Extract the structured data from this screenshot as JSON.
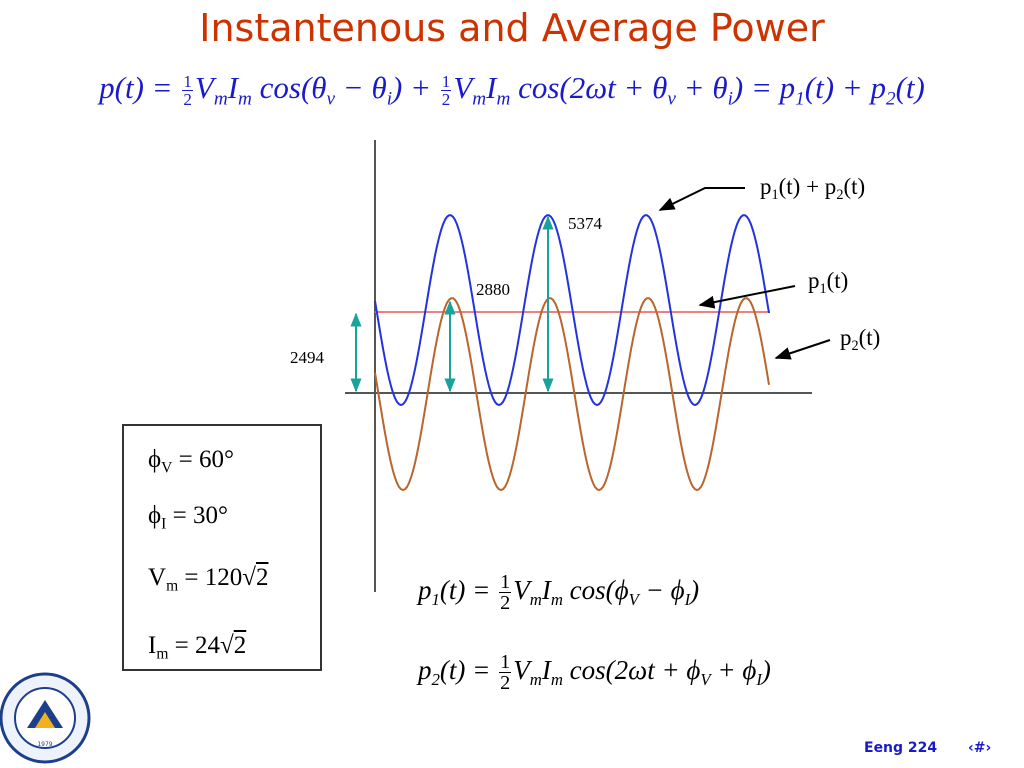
{
  "title": "Instantenous and Average Power",
  "equation": [
    "p(t) = ",
    "1",
    "2",
    "V",
    "m",
    "I",
    "m",
    " cos(θ",
    "v",
    " − θ",
    "i",
    ") + ",
    "1",
    "2",
    "V",
    "m",
    "I",
    "m",
    " cos(2ωt + θ",
    "v",
    " + θ",
    "i",
    ") = p",
    "1",
    "(t) + p",
    "2",
    "(t)"
  ],
  "figure": {
    "labels": {
      "total": [
        "p",
        "1",
        "(t) + p",
        "2",
        "(t)"
      ],
      "p1": [
        "p",
        "1",
        "(t)"
      ],
      "p2": [
        "p",
        "2",
        "(t)"
      ]
    },
    "annotations": {
      "peak": "5374",
      "p2_peak": "2880",
      "average": "2494"
    }
  },
  "parameters": [
    [
      "ϕ",
      "V",
      " = 60°"
    ],
    [
      "ϕ",
      "I",
      " = 30°"
    ],
    [
      "V",
      "m",
      " = 120√",
      "2"
    ],
    [
      "I",
      "m",
      " =  24√",
      "2"
    ]
  ],
  "formulas": [
    [
      "p",
      "1",
      "(t) = ",
      "1",
      "2",
      "V",
      "m",
      "I",
      "m",
      " cos(ϕ",
      "V",
      " − ϕ",
      "I",
      ")"
    ],
    [
      "p",
      "2",
      "(t) = ",
      "1",
      "2",
      "V",
      "m",
      "I",
      "m",
      " cos(2ωt + ϕ",
      "V",
      " + ϕ",
      "I",
      ")"
    ]
  ],
  "logo": {
    "year": "1979"
  },
  "footer": {
    "course": "Eeng 224",
    "page": "‹#›"
  }
}
